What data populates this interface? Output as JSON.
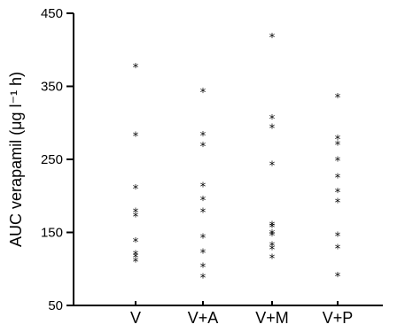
{
  "chart_data": {
    "type": "scatter",
    "title": "",
    "xlabel": "",
    "ylabel": "AUC verapamil (μg l⁻¹ h)",
    "ylim": [
      50,
      450
    ],
    "yticks": [
      50,
      150,
      250,
      350,
      450
    ],
    "grid": false,
    "legend": "none",
    "marker": "*",
    "categories": [
      "V",
      "V+A",
      "V+M",
      "V+P"
    ],
    "series": [
      {
        "category": "V",
        "values": [
          376,
          282,
          210,
          178,
          172,
          137,
          120,
          116,
          110
        ]
      },
      {
        "category": "V+A",
        "values": [
          342,
          283,
          268,
          213,
          194,
          178,
          143,
          122,
          103,
          88
        ]
      },
      {
        "category": "V+M",
        "values": [
          417,
          306,
          293,
          242,
          160,
          157,
          148,
          146,
          132,
          127,
          115
        ]
      },
      {
        "category": "V+P",
        "values": [
          335,
          278,
          270,
          248,
          225,
          205,
          191,
          145,
          128,
          90
        ]
      }
    ]
  }
}
